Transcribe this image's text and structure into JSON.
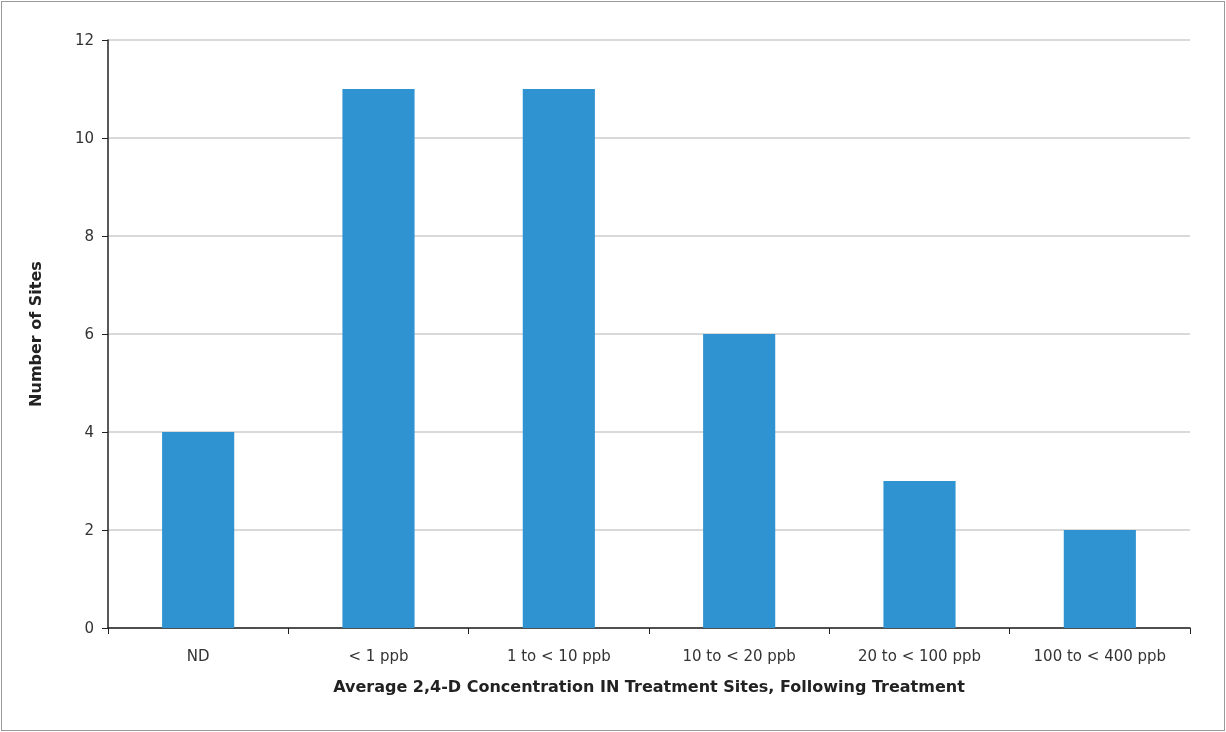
{
  "chart_data": {
    "type": "bar",
    "xlabel": "Average 2,4-D Concentration IN Treatment Sites, Following Treatment",
    "ylabel": "Number of Sites",
    "categories": [
      "ND",
      "< 1 ppb",
      "1 to < 10 ppb",
      "10 to < 20 ppb",
      "20 to < 100 ppb",
      "100 to < 400 ppb"
    ],
    "values": [
      4,
      11,
      11,
      6,
      3,
      2
    ],
    "color": "#2e93d0",
    "ylim": [
      0,
      12
    ],
    "yticks": [
      0,
      2,
      4,
      6,
      8,
      10,
      12
    ],
    "grid": "y"
  }
}
